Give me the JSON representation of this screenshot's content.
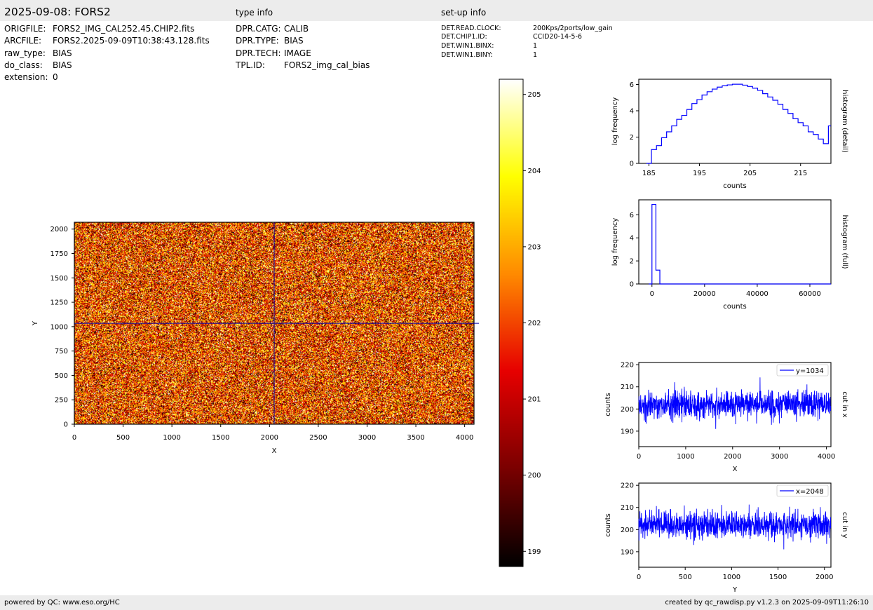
{
  "header": {
    "title": "2025-09-08: FORS2",
    "type_info_title": "type info",
    "setup_info_title": "set-up info"
  },
  "file_info": [
    {
      "key": "ORIGFILE:",
      "value": "FORS2_IMG_CAL252.45.CHIP2.fits"
    },
    {
      "key": "ARCFILE:",
      "value": "FORS2.2025-09-09T10:38:43.128.fits"
    },
    {
      "key": "raw_type:",
      "value": "BIAS"
    },
    {
      "key": "do_class:",
      "value": "BIAS"
    },
    {
      "key": "extension:",
      "value": "0"
    }
  ],
  "type_info": [
    {
      "key": "DPR.CATG:",
      "value": "CALIB"
    },
    {
      "key": "DPR.TYPE:",
      "value": "BIAS"
    },
    {
      "key": "DPR.TECH:",
      "value": "IMAGE"
    },
    {
      "key": "TPL.ID:",
      "value": "FORS2_img_cal_bias"
    }
  ],
  "setup_info": [
    {
      "key": "DET.READ.CLOCK:",
      "value": "200Kps/2ports/low_gain"
    },
    {
      "key": "DET.CHIP1.ID:",
      "value": "CCID20-14-5-6"
    },
    {
      "key": "DET.WIN1.BINX:",
      "value": "1"
    },
    {
      "key": "DET.WIN1.BINY:",
      "value": "1"
    }
  ],
  "footer": {
    "left": "powered by QC: www.eso.org/HC",
    "right": "created by qc_rawdisp.py v1.2.3 on 2025-09-09T11:26:10"
  },
  "colors": {
    "histogram": "#0000ff",
    "cut_line": "#0000ff",
    "crosshair": "#0000aa",
    "colormap": [
      "#000000",
      "#7a0000",
      "#e60000",
      "#ff8a00",
      "#ffff00",
      "#ffffff"
    ]
  },
  "chart_data": [
    {
      "type": "heatmap",
      "xlabel": "X",
      "ylabel": "Y",
      "xlim": [
        0,
        4096
      ],
      "ylim": [
        0,
        2070
      ],
      "xticks": [
        0,
        500,
        1000,
        1500,
        2000,
        2500,
        3000,
        3500,
        4000
      ],
      "yticks": [
        0,
        250,
        500,
        750,
        1000,
        1250,
        1500,
        1750,
        2000
      ],
      "crosshair": {
        "x": 2048,
        "y": 1034
      },
      "value_range": [
        198.8,
        205.2
      ],
      "colorbar_ticks": [
        199,
        200,
        201,
        202,
        203,
        204,
        205
      ],
      "colormap": "hot"
    },
    {
      "type": "line",
      "ylabel": "log frequency",
      "xlabel": "counts",
      "side_label": "histogram (detail)",
      "xlim": [
        183,
        221
      ],
      "ylim": [
        0,
        6.4
      ],
      "xticks": [
        185,
        195,
        205,
        215
      ],
      "yticks": [
        0,
        2,
        4,
        6
      ],
      "step": true,
      "x": [
        185,
        186,
        187,
        188,
        189,
        190,
        191,
        192,
        193,
        194,
        195,
        196,
        197,
        198,
        199,
        200,
        201,
        202,
        203,
        204,
        205,
        206,
        207,
        208,
        209,
        210,
        211,
        212,
        213,
        214,
        215,
        216,
        217,
        218,
        219,
        220,
        221
      ],
      "values": [
        0,
        1.05,
        1.35,
        1.95,
        2.4,
        2.85,
        3.35,
        3.65,
        4.1,
        4.55,
        4.85,
        5.2,
        5.45,
        5.65,
        5.8,
        5.9,
        5.97,
        6.02,
        6.02,
        5.95,
        5.85,
        5.72,
        5.55,
        5.3,
        5.05,
        4.8,
        4.5,
        4.1,
        3.8,
        3.4,
        3.1,
        2.85,
        2.4,
        2.2,
        1.85,
        1.5,
        2.85
      ]
    },
    {
      "type": "line",
      "ylabel": "log frequency",
      "xlabel": "counts",
      "side_label": "histogram (full)",
      "xlim": [
        -5000,
        68000
      ],
      "ylim": [
        0,
        7.3
      ],
      "xticks": [
        0,
        20000,
        40000,
        60000
      ],
      "yticks": [
        0,
        2,
        4,
        6
      ],
      "step": true,
      "x": [
        -1200,
        0,
        1500,
        3000,
        68000
      ],
      "values": [
        0,
        6.9,
        1.2,
        0,
        0
      ]
    },
    {
      "type": "line",
      "ylabel": "counts",
      "xlabel": "X",
      "side_label": "cut in x",
      "legend": "y=1034",
      "legend_position": "top-right",
      "xlim": [
        0,
        4096
      ],
      "ylim": [
        183,
        221
      ],
      "xticks": [
        0,
        1000,
        2000,
        3000,
        4000
      ],
      "yticks": [
        190,
        200,
        210,
        220
      ],
      "mean": 202.2,
      "spread": 4.5,
      "n": 4096
    },
    {
      "type": "line",
      "ylabel": "counts",
      "xlabel": "Y",
      "side_label": "cut in y",
      "legend": "x=2048",
      "legend_position": "top-right",
      "xlim": [
        0,
        2070
      ],
      "ylim": [
        183,
        221
      ],
      "xticks": [
        0,
        500,
        1000,
        1500,
        2000
      ],
      "yticks": [
        190,
        200,
        210,
        220
      ],
      "mean": 202.2,
      "spread": 4.5,
      "n": 2070
    }
  ]
}
